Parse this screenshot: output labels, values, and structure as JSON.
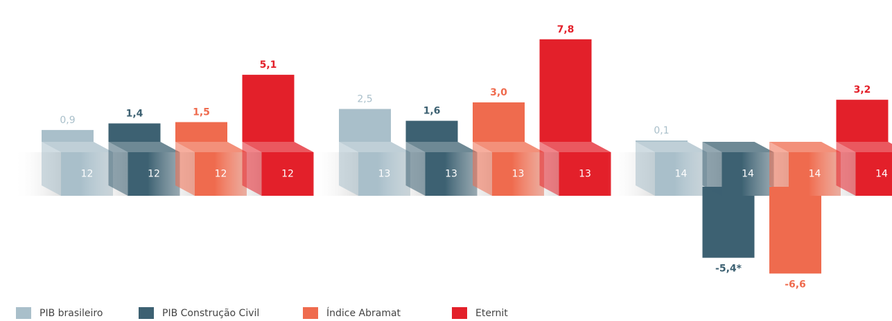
{
  "chart_data": {
    "type": "bar3d",
    "categories": [
      "12",
      "13",
      "14"
    ],
    "series": [
      {
        "name": "PIB brasileiro",
        "color": "#a9bfca",
        "values": [
          0.9,
          2.5,
          0.1
        ],
        "value_labels": [
          "0,9",
          "2,5",
          "0,1"
        ]
      },
      {
        "name": "PIB Construção Civil",
        "color": "#3d6172",
        "values": [
          1.4,
          1.6,
          -5.4
        ],
        "value_labels": [
          "1,4",
          "1,6",
          "-5,4*"
        ]
      },
      {
        "name": "Índice Abramat",
        "color": "#ef6b4e",
        "values": [
          1.5,
          3.0,
          -6.6
        ],
        "value_labels": [
          "1,5",
          "3,0",
          "-6,6"
        ]
      },
      {
        "name": "Eternit",
        "color": "#e3202a",
        "values": [
          5.1,
          7.8,
          3.2
        ],
        "value_labels": [
          "5,1",
          "7,8",
          "3,2"
        ]
      }
    ],
    "legend": "bottom-left"
  }
}
